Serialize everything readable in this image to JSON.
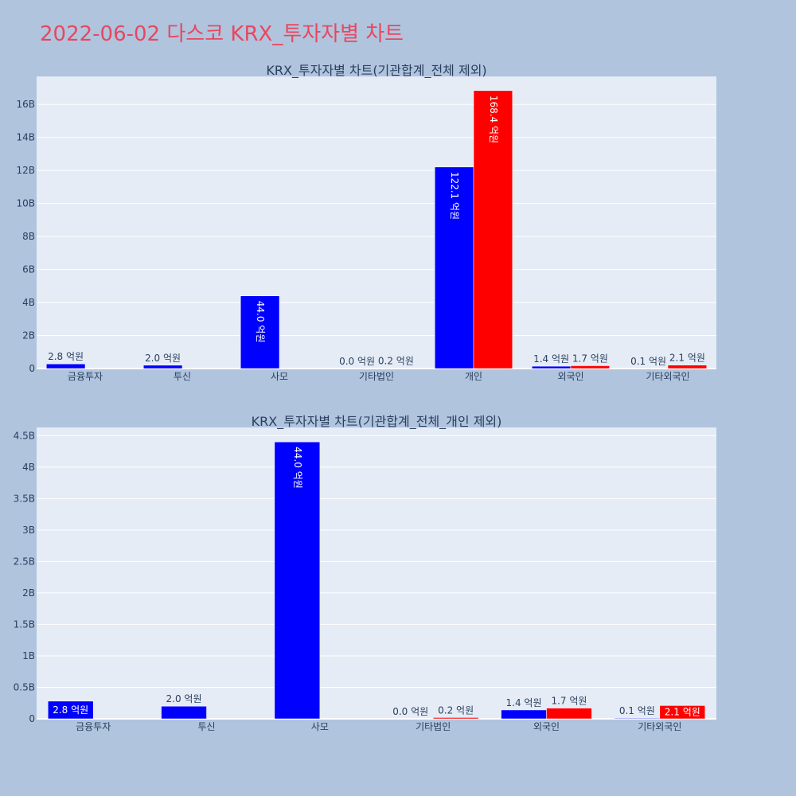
{
  "title": "2022-06-02 다스코 KRX_투자자별 차트",
  "colors": {
    "background": "#b0c4de",
    "plot_background": "#e5ecf6",
    "gridline": "#ffffff",
    "title": "#e8475f",
    "text": "#2a3f5f",
    "series_buy": "#0000ff",
    "series_sell": "#ff0000"
  },
  "chart_data": [
    {
      "type": "bar",
      "title": "KRX_투자자별 차트(기관합계_전체 제외)",
      "categories": [
        "금융투자",
        "투신",
        "사모",
        "기타법인",
        "개인",
        "외국인",
        "기타외국인"
      ],
      "series": [
        {
          "color": "#0000ff",
          "values": [
            280000000,
            200000000,
            4400000000,
            0,
            12210000000,
            140000000,
            10000000
          ],
          "labels": [
            "2.8 억원",
            "2.0 억원",
            "44.0 억원",
            "0.0 억원",
            "122.1 억원",
            "1.4 억원",
            "0.1 억원"
          ]
        },
        {
          "color": "#ff0000",
          "values": [
            0,
            0,
            0,
            20000000,
            16840000000,
            170000000,
            210000000
          ],
          "labels": [
            "",
            "",
            "",
            "0.2 억원",
            "168.4 억원",
            "1.7 억원",
            "2.1 억원"
          ]
        }
      ],
      "yticks": [
        0,
        2000000000,
        4000000000,
        6000000000,
        8000000000,
        10000000000,
        12000000000,
        14000000000,
        16000000000
      ],
      "ytick_labels": [
        "0",
        "2B",
        "4B",
        "6B",
        "8B",
        "10B",
        "12B",
        "14B",
        "16B"
      ],
      "ylim": [
        0,
        17700000000
      ],
      "grid": true
    },
    {
      "type": "bar",
      "title": "KRX_투자자별 차트(기관합계_전체_개인 제외)",
      "categories": [
        "금융투자",
        "투신",
        "사모",
        "기타법인",
        "외국인",
        "기타외국인"
      ],
      "series": [
        {
          "color": "#0000ff",
          "values": [
            280000000,
            200000000,
            4400000000,
            0,
            140000000,
            10000000
          ],
          "labels": [
            "2.8 억원",
            "2.0 억원",
            "44.0 억원",
            "0.0 억원",
            "1.4 억원",
            "0.1 억원"
          ]
        },
        {
          "color": "#ff0000",
          "values": [
            0,
            0,
            0,
            20000000,
            170000000,
            210000000
          ],
          "labels": [
            "",
            "",
            "",
            "0.2 억원",
            "1.7 억원",
            "2.1 억원"
          ]
        }
      ],
      "yticks": [
        0,
        500000000,
        1000000000,
        1500000000,
        2000000000,
        2500000000,
        3000000000,
        3500000000,
        4000000000,
        4500000000
      ],
      "ytick_labels": [
        "0",
        "0.5B",
        "1B",
        "1.5B",
        "2B",
        "2.5B",
        "3B",
        "3.5B",
        "4B",
        "4.5B"
      ],
      "ylim": [
        0,
        4630000000
      ],
      "grid": true
    }
  ]
}
